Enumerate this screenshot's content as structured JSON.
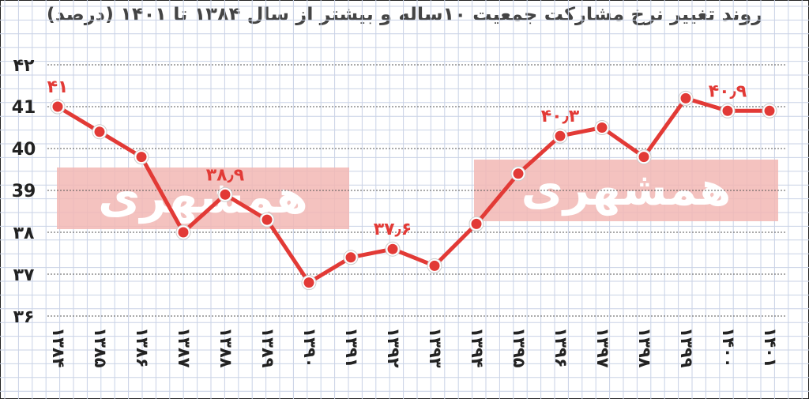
{
  "chart_data": {
    "type": "line",
    "title": "روند تغییر نرخ مشارکت جمعیت ۱۰ساله و بیشتر از سال ۱۳۸۴ تا ۱۴۰۱ (درصد)",
    "categories": [
      "۱۳۸۴",
      "۱۳۸۵",
      "۱۳۸۶",
      "۱۳۸۷",
      "۱۳۸۸",
      "۱۳۸۹",
      "۱۳۹۰",
      "۱۳۹۱",
      "۱۳۹۲",
      "۱۳۹۳",
      "۱۳۹۴",
      "۱۳۹۵",
      "۱۳۹۶",
      "۱۳۹۷",
      "۱۳۹۸",
      "۱۳۹۹",
      "۱۴۰۰",
      "۱۴۰۱"
    ],
    "series": [
      {
        "values": [
          41.0,
          40.4,
          39.8,
          38.0,
          38.9,
          38.3,
          36.8,
          37.4,
          37.6,
          37.2,
          38.2,
          39.4,
          40.3,
          40.5,
          39.8,
          41.2,
          40.9,
          40.9
        ]
      }
    ],
    "data_labels": [
      {
        "index": 0,
        "text": "۴۱"
      },
      {
        "index": 4,
        "text": "۳۸٫۹"
      },
      {
        "index": 8,
        "text": "۳۷٫۶"
      },
      {
        "index": 12,
        "text": "۴۰٫۳"
      },
      {
        "index": 16,
        "text": "۴۰٫۹"
      }
    ],
    "yticks": [
      42,
      41,
      40,
      39,
      38,
      37,
      36
    ],
    "ytick_labels": [
      "۴۲",
      "41",
      "40",
      "39",
      "۳۸",
      "۳۷",
      "۳۶"
    ],
    "ylim": [
      36,
      42
    ],
    "grid": true,
    "watermark_text": "همشهری",
    "line_color": "#e23a36",
    "marker_fill": "#e23a36",
    "marker_stroke": "#ffffff",
    "grid_color": "#c9d2e6",
    "watermark_color": "#f2b7b4"
  }
}
